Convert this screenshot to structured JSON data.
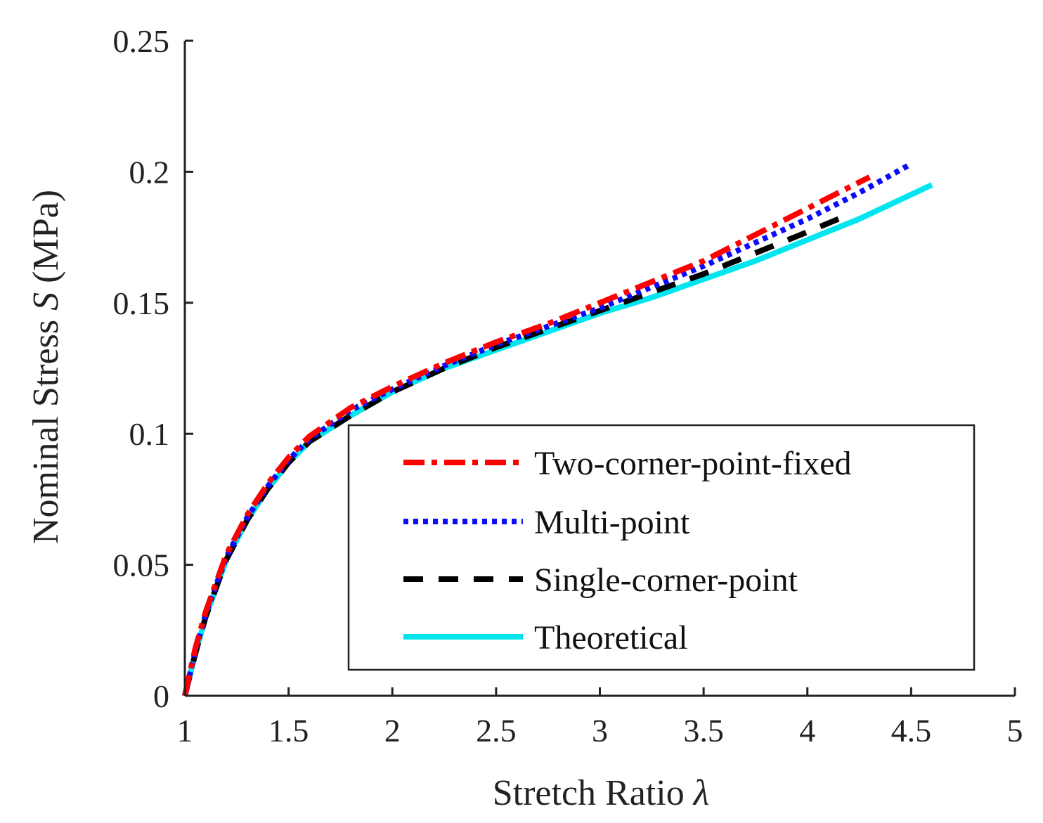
{
  "chart_data": {
    "type": "line",
    "title": "",
    "xlabel": "Stretch Ratio",
    "xlabel_symbol": "λ",
    "ylabel": "Nominal Stress",
    "ylabel_symbol": "S",
    "ylabel_unit": "(MPa)",
    "xlim": [
      1,
      5
    ],
    "ylim": [
      0,
      0.25
    ],
    "xticks": [
      1,
      1.5,
      2,
      2.5,
      3,
      3.5,
      4,
      4.5,
      5
    ],
    "xtick_labels": [
      "1",
      "1.5",
      "2",
      "2.5",
      "3",
      "3.5",
      "4",
      "4.5",
      "5"
    ],
    "yticks": [
      0,
      0.05,
      0.1,
      0.15,
      0.2,
      0.25
    ],
    "ytick_labels": [
      "0",
      "0.05",
      "0.1",
      "0.15",
      "0.2",
      "0.25"
    ],
    "grid": false,
    "legend_position": "bottom-right",
    "series": [
      {
        "name": "Two-corner-point-fixed",
        "color": "#ff0000",
        "style": "dashdot",
        "x": [
          1.0,
          1.05,
          1.1,
          1.2,
          1.3,
          1.4,
          1.5,
          1.6,
          1.8,
          2.0,
          2.25,
          2.5,
          2.75,
          3.0,
          3.25,
          3.5,
          3.75,
          4.0,
          4.15,
          4.3
        ],
        "y": [
          0.0,
          0.018,
          0.032,
          0.054,
          0.069,
          0.081,
          0.091,
          0.099,
          0.11,
          0.118,
          0.127,
          0.135,
          0.142,
          0.15,
          0.158,
          0.166,
          0.176,
          0.186,
          0.192,
          0.198
        ]
      },
      {
        "name": "Multi-point",
        "color": "#0a0aff",
        "style": "dotted",
        "x": [
          1.0,
          1.05,
          1.1,
          1.2,
          1.3,
          1.4,
          1.5,
          1.6,
          1.8,
          2.0,
          2.25,
          2.5,
          2.75,
          3.0,
          3.25,
          3.5,
          3.75,
          4.0,
          4.25,
          4.5
        ],
        "y": [
          0.0,
          0.017,
          0.031,
          0.053,
          0.068,
          0.08,
          0.09,
          0.098,
          0.109,
          0.117,
          0.126,
          0.134,
          0.141,
          0.148,
          0.156,
          0.164,
          0.173,
          0.182,
          0.192,
          0.203
        ]
      },
      {
        "name": "Single-corner-point",
        "color": "#000000",
        "style": "dashed",
        "x": [
          1.0,
          1.05,
          1.1,
          1.2,
          1.3,
          1.4,
          1.5,
          1.6,
          1.8,
          2.0,
          2.25,
          2.5,
          2.75,
          3.0,
          3.25,
          3.5,
          3.75,
          4.0,
          4.15
        ],
        "y": [
          0.0,
          0.016,
          0.03,
          0.052,
          0.067,
          0.079,
          0.089,
          0.097,
          0.107,
          0.116,
          0.125,
          0.133,
          0.14,
          0.147,
          0.154,
          0.161,
          0.169,
          0.177,
          0.182
        ]
      },
      {
        "name": "Theoretical",
        "color": "#00e5ee",
        "style": "solid",
        "x": [
          1.0,
          1.05,
          1.1,
          1.2,
          1.3,
          1.4,
          1.5,
          1.6,
          1.8,
          2.0,
          2.25,
          2.5,
          2.75,
          3.0,
          3.25,
          3.5,
          3.75,
          4.0,
          4.25,
          4.6
        ],
        "y": [
          0.0,
          0.016,
          0.03,
          0.052,
          0.067,
          0.079,
          0.089,
          0.097,
          0.107,
          0.116,
          0.125,
          0.132,
          0.139,
          0.146,
          0.152,
          0.159,
          0.166,
          0.174,
          0.182,
          0.195
        ]
      }
    ]
  }
}
